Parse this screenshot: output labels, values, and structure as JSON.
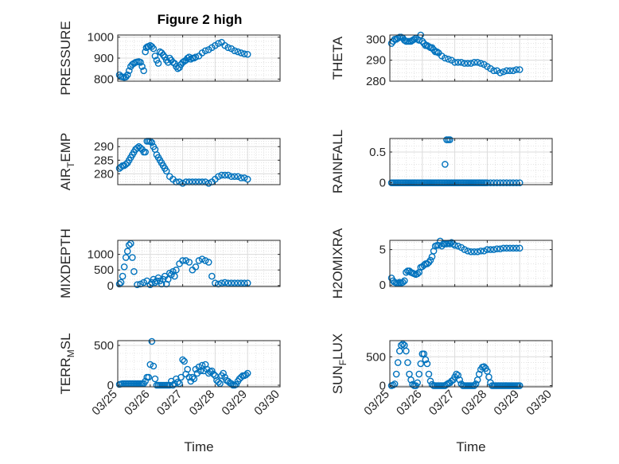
{
  "figure_title": "Figure 2 high",
  "marker_color": "#0072BD",
  "chart_data": [
    {
      "type": "scatter",
      "ylabel": "PRESSURE",
      "xlabel": "",
      "xlim": [
        0,
        5
      ],
      "ylim": [
        790,
        1010
      ],
      "yticks": [
        800,
        900,
        1000
      ],
      "ytick_labels": [
        "800",
        "900",
        "1000"
      ],
      "grid": true,
      "x": [
        0.05,
        0.1,
        0.15,
        0.2,
        0.25,
        0.3,
        0.35,
        0.4,
        0.45,
        0.5,
        0.55,
        0.6,
        0.65,
        0.7,
        0.75,
        0.8,
        0.85,
        0.88,
        0.92,
        0.95,
        1.0,
        1.05,
        1.1,
        1.15,
        1.2,
        1.25,
        1.3,
        1.35,
        1.4,
        1.45,
        1.5,
        1.55,
        1.6,
        1.65,
        1.7,
        1.75,
        1.8,
        1.85,
        1.9,
        1.95,
        2.0,
        2.05,
        2.1,
        2.15,
        2.2,
        2.25,
        2.3,
        2.35,
        2.4,
        2.5,
        2.6,
        2.7,
        2.8,
        2.9,
        3.0,
        3.1,
        3.2,
        3.3,
        3.4,
        3.5,
        3.6,
        3.7,
        3.8,
        3.9,
        4.0
      ],
      "y": [
        820,
        812,
        810,
        808,
        810,
        820,
        840,
        860,
        870,
        875,
        880,
        882,
        883,
        880,
        860,
        840,
        930,
        950,
        955,
        955,
        960,
        955,
        945,
        910,
        890,
        875,
        930,
        925,
        915,
        905,
        890,
        880,
        900,
        890,
        880,
        875,
        860,
        850,
        855,
        870,
        880,
        885,
        890,
        900,
        905,
        895,
        900,
        900,
        905,
        910,
        925,
        935,
        940,
        950,
        960,
        970,
        975,
        960,
        950,
        945,
        935,
        930,
        925,
        920,
        918
      ]
    },
    {
      "type": "scatter",
      "ylabel": "THETA",
      "xlabel": "",
      "xlim": [
        0,
        5
      ],
      "ylim": [
        280,
        302
      ],
      "yticks": [
        280,
        290,
        300
      ],
      "ytick_labels": [
        "280",
        "290",
        "300"
      ],
      "grid": true,
      "x": [
        0.05,
        0.1,
        0.15,
        0.2,
        0.25,
        0.3,
        0.35,
        0.4,
        0.45,
        0.5,
        0.55,
        0.6,
        0.65,
        0.7,
        0.75,
        0.8,
        0.85,
        0.9,
        0.95,
        1.0,
        1.05,
        1.1,
        1.15,
        1.2,
        1.25,
        1.3,
        1.35,
        1.4,
        1.45,
        1.5,
        1.6,
        1.7,
        1.8,
        1.9,
        2.0,
        2.1,
        2.2,
        2.3,
        2.4,
        2.5,
        2.6,
        2.7,
        2.8,
        2.9,
        3.0,
        3.1,
        3.2,
        3.3,
        3.4,
        3.5,
        3.6,
        3.7,
        3.8,
        3.9,
        4.0
      ],
      "y": [
        298,
        299,
        300,
        300,
        300.5,
        301,
        301,
        300.5,
        299.5,
        299,
        299,
        299,
        299,
        299.5,
        300,
        300.5,
        300,
        299.5,
        302,
        299,
        298,
        297,
        297,
        296.5,
        296,
        296,
        295,
        294,
        294,
        293.5,
        292,
        291,
        290.5,
        290,
        289,
        289,
        289,
        288.5,
        288.5,
        288.5,
        289,
        289,
        288.5,
        288,
        287,
        286,
        285,
        285,
        284,
        284.5,
        285,
        285,
        285,
        285.5,
        285.5
      ]
    },
    {
      "type": "scatter",
      "ylabel": "AIR_TEMP",
      "xlabel": "",
      "xlim": [
        0,
        5
      ],
      "ylim": [
        276,
        293
      ],
      "yticks": [
        280,
        285,
        290
      ],
      "ytick_labels": [
        "280",
        "285",
        "290"
      ],
      "grid": true,
      "x": [
        0.05,
        0.1,
        0.15,
        0.2,
        0.25,
        0.3,
        0.35,
        0.4,
        0.45,
        0.5,
        0.55,
        0.6,
        0.65,
        0.7,
        0.75,
        0.8,
        0.85,
        0.9,
        0.95,
        1.0,
        1.05,
        1.1,
        1.15,
        1.2,
        1.25,
        1.3,
        1.35,
        1.4,
        1.45,
        1.5,
        1.6,
        1.7,
        1.8,
        1.9,
        2.0,
        2.1,
        2.2,
        2.3,
        2.4,
        2.5,
        2.6,
        2.7,
        2.8,
        2.9,
        3.0,
        3.1,
        3.2,
        3.3,
        3.4,
        3.5,
        3.6,
        3.7,
        3.8,
        3.9,
        4.0
      ],
      "y": [
        282,
        282.5,
        283,
        283,
        283.5,
        284,
        285,
        286,
        287,
        288,
        289,
        289.5,
        290,
        289.5,
        289,
        288,
        288,
        292,
        292,
        292,
        291.5,
        290,
        289,
        287,
        286,
        285,
        284,
        283,
        282,
        281,
        279,
        278,
        277,
        277,
        276.5,
        277,
        277,
        277,
        277,
        277,
        277,
        277,
        276.5,
        277,
        278,
        279,
        279.5,
        279.5,
        279.5,
        279,
        279,
        279,
        278.5,
        278.5,
        278
      ]
    },
    {
      "type": "scatter",
      "ylabel": "RAINFALL",
      "xlabel": "",
      "xlim": [
        0,
        5
      ],
      "ylim": [
        -0.03,
        0.72
      ],
      "yticks": [
        0,
        0.5
      ],
      "ytick_labels": [
        "0",
        "0.5"
      ],
      "grid": true,
      "x": [
        0.05,
        0.1,
        0.15,
        0.2,
        0.25,
        0.3,
        0.35,
        0.4,
        0.45,
        0.5,
        0.55,
        0.6,
        0.65,
        0.7,
        0.75,
        0.8,
        0.85,
        0.9,
        0.95,
        1.0,
        1.05,
        1.1,
        1.15,
        1.2,
        1.25,
        1.3,
        1.35,
        1.4,
        1.45,
        1.5,
        1.55,
        1.6,
        1.65,
        1.7,
        1.75,
        1.8,
        1.85,
        1.9,
        1.95,
        2.0,
        2.05,
        2.1,
        2.15,
        2.2,
        2.25,
        2.3,
        2.35,
        2.4,
        2.45,
        2.5,
        2.55,
        2.6,
        2.65,
        2.7,
        2.75,
        2.8,
        2.85,
        2.9,
        2.95,
        3.0,
        3.1,
        3.2,
        3.3,
        3.4,
        3.5,
        3.6,
        3.7,
        3.8,
        3.9,
        4.0,
        1.7,
        1.75,
        1.8,
        1.85
      ],
      "y": [
        0,
        0,
        0,
        0,
        0,
        0,
        0,
        0,
        0,
        0,
        0,
        0,
        0,
        0,
        0,
        0,
        0,
        0,
        0,
        0,
        0,
        0,
        0,
        0,
        0,
        0,
        0,
        0,
        0,
        0,
        0,
        0,
        0,
        0,
        0,
        0,
        0,
        0,
        0,
        0,
        0,
        0,
        0,
        0,
        0,
        0,
        0,
        0,
        0,
        0,
        0,
        0,
        0,
        0,
        0,
        0,
        0,
        0,
        0,
        0,
        0,
        0,
        0,
        0,
        0,
        0,
        0,
        0,
        0,
        0,
        0.3,
        0.7,
        0.7,
        0.7
      ]
    },
    {
      "type": "scatter",
      "ylabel": "MIXDEPTH",
      "xlabel": "",
      "xlim": [
        0,
        5
      ],
      "ylim": [
        -30,
        1450
      ],
      "yticks": [
        0,
        500,
        1000
      ],
      "ytick_labels": [
        "0",
        "500",
        "1000"
      ],
      "grid": true,
      "x": [
        0.05,
        0.1,
        0.15,
        0.2,
        0.25,
        0.3,
        0.35,
        0.4,
        0.45,
        0.5,
        0.6,
        0.7,
        0.8,
        0.9,
        1.0,
        1.05,
        1.1,
        1.15,
        1.2,
        1.25,
        1.3,
        1.35,
        1.4,
        1.45,
        1.5,
        1.55,
        1.6,
        1.65,
        1.7,
        1.75,
        1.8,
        1.9,
        2.0,
        2.1,
        2.2,
        2.3,
        2.4,
        2.5,
        2.6,
        2.7,
        2.8,
        2.9,
        3.0,
        3.1,
        3.2,
        3.3,
        3.4,
        3.5,
        3.6,
        3.7,
        3.8,
        3.9,
        4.0
      ],
      "y": [
        50,
        100,
        300,
        600,
        900,
        1100,
        1300,
        1350,
        900,
        450,
        30,
        50,
        100,
        150,
        30,
        100,
        200,
        100,
        150,
        250,
        150,
        50,
        200,
        300,
        50,
        200,
        400,
        350,
        450,
        300,
        500,
        700,
        800,
        800,
        750,
        500,
        600,
        800,
        850,
        800,
        750,
        300,
        80,
        50,
        80,
        100,
        80,
        80,
        80,
        80,
        80,
        80,
        80
      ]
    },
    {
      "type": "scatter",
      "ylabel": "H2OMIXRA",
      "xlabel": "",
      "xlim": [
        0,
        5
      ],
      "ylim": [
        -0.2,
        6.3
      ],
      "yticks": [
        0,
        5
      ],
      "ytick_labels": [
        "0",
        "5"
      ],
      "grid": true,
      "x": [
        0.05,
        0.1,
        0.15,
        0.2,
        0.25,
        0.3,
        0.35,
        0.4,
        0.45,
        0.5,
        0.55,
        0.6,
        0.65,
        0.7,
        0.75,
        0.8,
        0.85,
        0.9,
        0.95,
        1.0,
        1.05,
        1.1,
        1.15,
        1.2,
        1.25,
        1.3,
        1.35,
        1.4,
        1.45,
        1.5,
        1.55,
        1.6,
        1.65,
        1.7,
        1.75,
        1.8,
        1.85,
        1.9,
        1.95,
        2.0,
        2.1,
        2.2,
        2.3,
        2.4,
        2.5,
        2.6,
        2.7,
        2.8,
        2.9,
        3.0,
        3.1,
        3.2,
        3.3,
        3.4,
        3.5,
        3.6,
        3.7,
        3.8,
        3.9,
        4.0
      ],
      "y": [
        1,
        0.6,
        0.4,
        0.3,
        0.3,
        0.4,
        0.3,
        0.4,
        0.6,
        1.8,
        2,
        2,
        1.8,
        1.7,
        1.6,
        1.5,
        1.6,
        1.8,
        2.5,
        2.6,
        2.8,
        3,
        3,
        3.2,
        3.5,
        4,
        4.8,
        5.5,
        5.6,
        5.6,
        6.2,
        5.5,
        5.8,
        5.8,
        5.8,
        5.9,
        5.8,
        6,
        5.8,
        5.6,
        5.5,
        5.3,
        5,
        4.8,
        4.7,
        4.7,
        4.7,
        4.8,
        4.8,
        5,
        5,
        5,
        5.1,
        5.1,
        5.2,
        5.2,
        5.2,
        5.2,
        5.2,
        5.2
      ]
    },
    {
      "type": "scatter",
      "ylabel": "TERR_MSL",
      "xlabel": "Time",
      "xlim": [
        0,
        5
      ],
      "ylim": [
        -20,
        560
      ],
      "yticks": [
        0,
        500
      ],
      "ytick_labels": [
        "0",
        "500"
      ],
      "grid": true,
      "x": [
        0.05,
        0.1,
        0.15,
        0.2,
        0.25,
        0.3,
        0.35,
        0.4,
        0.45,
        0.5,
        0.55,
        0.6,
        0.65,
        0.7,
        0.75,
        0.8,
        0.85,
        0.9,
        0.95,
        1.0,
        1.05,
        1.1,
        1.15,
        1.2,
        1.25,
        1.3,
        1.35,
        1.4,
        1.45,
        1.5,
        1.55,
        1.6,
        1.65,
        1.7,
        1.75,
        1.8,
        1.85,
        1.9,
        1.95,
        2.0,
        2.05,
        2.1,
        2.15,
        2.2,
        2.25,
        2.3,
        2.35,
        2.4,
        2.45,
        2.5,
        2.55,
        2.6,
        2.65,
        2.7,
        2.75,
        2.8,
        2.85,
        2.9,
        2.95,
        3.0,
        3.05,
        3.1,
        3.15,
        3.2,
        3.25,
        3.3,
        3.35,
        3.4,
        3.45,
        3.5,
        3.55,
        3.6,
        3.65,
        3.7,
        3.75,
        3.8,
        3.85,
        3.9,
        3.95,
        4.0
      ],
      "y": [
        10,
        15,
        20,
        20,
        20,
        20,
        20,
        20,
        20,
        20,
        20,
        20,
        20,
        20,
        20,
        20,
        50,
        100,
        100,
        260,
        550,
        240,
        80,
        0,
        0,
        0,
        0,
        0,
        0,
        0,
        0,
        0,
        50,
        0,
        20,
        80,
        40,
        20,
        100,
        320,
        300,
        140,
        200,
        100,
        50,
        100,
        80,
        200,
        150,
        230,
        180,
        250,
        180,
        260,
        200,
        150,
        170,
        180,
        140,
        120,
        60,
        40,
        20,
        120,
        150,
        100,
        60,
        50,
        30,
        20,
        0,
        0,
        10,
        50,
        80,
        100,
        120,
        120,
        130,
        150
      ]
    },
    {
      "type": "scatter",
      "ylabel": "SUN_FLUX",
      "xlabel": "Time",
      "xlim": [
        0,
        5
      ],
      "ylim": [
        -20,
        780
      ],
      "yticks": [
        0,
        500
      ],
      "ytick_labels": [
        "0",
        "500"
      ],
      "grid": true,
      "x": [
        0.05,
        0.1,
        0.15,
        0.2,
        0.25,
        0.3,
        0.35,
        0.4,
        0.45,
        0.5,
        0.55,
        0.6,
        0.65,
        0.7,
        0.75,
        0.8,
        0.85,
        0.9,
        0.95,
        1.0,
        1.05,
        1.1,
        1.15,
        1.2,
        1.25,
        1.3,
        1.35,
        1.4,
        1.45,
        1.5,
        1.55,
        1.6,
        1.65,
        1.7,
        1.75,
        1.8,
        1.85,
        1.9,
        1.95,
        2.0,
        2.05,
        2.1,
        2.15,
        2.2,
        2.25,
        2.3,
        2.35,
        2.4,
        2.45,
        2.5,
        2.55,
        2.6,
        2.65,
        2.7,
        2.75,
        2.8,
        2.85,
        2.9,
        2.95,
        3.0,
        3.05,
        3.1,
        3.15,
        3.2,
        3.25,
        3.3,
        3.35,
        3.4,
        3.45,
        3.5,
        3.55,
        3.6,
        3.65,
        3.7,
        3.75,
        3.8,
        3.85,
        3.9,
        3.95,
        4.0
      ],
      "y": [
        0,
        10,
        30,
        200,
        400,
        600,
        700,
        720,
        700,
        600,
        400,
        200,
        100,
        20,
        0,
        0,
        50,
        200,
        380,
        550,
        550,
        450,
        380,
        200,
        80,
        20,
        0,
        0,
        0,
        0,
        0,
        0,
        0,
        0,
        20,
        40,
        50,
        80,
        100,
        150,
        200,
        180,
        100,
        30,
        0,
        0,
        0,
        0,
        0,
        0,
        0,
        0,
        30,
        100,
        200,
        280,
        320,
        330,
        300,
        250,
        150,
        50,
        0,
        0,
        0,
        0,
        0,
        0,
        0,
        0,
        0,
        0,
        0,
        0,
        0,
        0,
        0,
        0,
        0,
        0
      ]
    }
  ],
  "ylabel_parts": [
    {
      "text": "PRESSURE"
    },
    {
      "text": "THETA"
    },
    {
      "pre": "AIR",
      "sub": "T",
      "post": "EMP"
    },
    {
      "text": "RAINFALL"
    },
    {
      "text": "MIXDEPTH"
    },
    {
      "text": "H2OMIXRA"
    },
    {
      "pre": "TERR",
      "sub": "M",
      "post": "SL"
    },
    {
      "pre": "SUN",
      "sub": "F",
      "post": "LUX"
    }
  ],
  "xtick_values": [
    0,
    1,
    2,
    3,
    4,
    5
  ],
  "xtick_labels": [
    "03/25",
    "03/26",
    "03/27",
    "03/28",
    "03/29",
    "03/30"
  ],
  "xlabel_text": "Time"
}
